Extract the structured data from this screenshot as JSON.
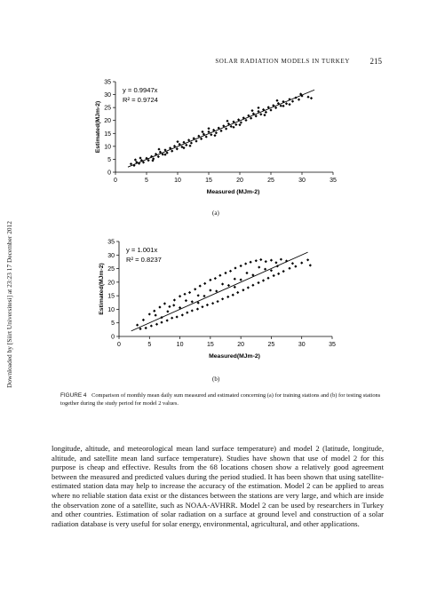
{
  "header": {
    "running_title": "SOLAR RADIATION MODELS IN TURKEY",
    "page_number": "215"
  },
  "side_note": "Downloaded by [Siirt Universitesi] at 23:23 17 December 2012",
  "figure": {
    "caption_label": "FIGURE 4",
    "caption_text": "Comparison of monthly mean daily sum measured and estimated concerning (a) for training stations and (b) for testing stations together during the study period for model 2 values.",
    "panel_a_label": "(a)",
    "panel_b_label": "(b)"
  },
  "chart_data": [
    {
      "type": "scatter",
      "panel": "(a)",
      "xlabel": "Measured (MJm-2)",
      "ylabel": "Estimated(MJm-2)",
      "xlim": [
        0,
        35
      ],
      "ylim": [
        0,
        35
      ],
      "xticks": [
        "0",
        "5",
        "10",
        "15",
        "20",
        "25",
        "30",
        "35"
      ],
      "yticks": [
        "0",
        "5",
        "10",
        "15",
        "20",
        "25",
        "30",
        "35"
      ],
      "equation": "y = 0.9947x",
      "r2": "R² = 0.9724",
      "trendline_slope": 0.9947,
      "trendline_x": [
        2,
        32
      ],
      "points": [
        [
          2.5,
          3.2
        ],
        [
          3.0,
          2.6
        ],
        [
          3.4,
          3.9
        ],
        [
          3.8,
          3.4
        ],
        [
          4.2,
          4.6
        ],
        [
          4.5,
          3.8
        ],
        [
          5.0,
          5.4
        ],
        [
          5.3,
          4.6
        ],
        [
          5.8,
          6.1
        ],
        [
          6.1,
          5.2
        ],
        [
          6.5,
          7.0
        ],
        [
          6.9,
          6.0
        ],
        [
          7.2,
          7.8
        ],
        [
          7.6,
          6.9
        ],
        [
          8.0,
          8.6
        ],
        [
          8.3,
          7.5
        ],
        [
          8.8,
          9.3
        ],
        [
          9.1,
          8.2
        ],
        [
          9.5,
          10.1
        ],
        [
          9.9,
          9.0
        ],
        [
          10.3,
          10.8
        ],
        [
          10.7,
          9.8
        ],
        [
          11.0,
          11.6
        ],
        [
          11.4,
          10.5
        ],
        [
          11.8,
          12.4
        ],
        [
          12.2,
          11.3
        ],
        [
          12.6,
          13.1
        ],
        [
          13.0,
          12.0
        ],
        [
          13.4,
          14.0
        ],
        [
          13.8,
          12.9
        ],
        [
          14.2,
          14.7
        ],
        [
          14.6,
          13.7
        ],
        [
          15.0,
          15.6
        ],
        [
          15.4,
          14.5
        ],
        [
          15.8,
          16.3
        ],
        [
          16.2,
          15.2
        ],
        [
          16.6,
          17.1
        ],
        [
          17.0,
          16.0
        ],
        [
          17.4,
          17.9
        ],
        [
          17.8,
          16.8
        ],
        [
          18.2,
          18.7
        ],
        [
          18.6,
          17.7
        ],
        [
          19.0,
          19.5
        ],
        [
          19.4,
          18.4
        ],
        [
          19.8,
          20.3
        ],
        [
          20.2,
          19.2
        ],
        [
          20.6,
          21.0
        ],
        [
          21.0,
          20.1
        ],
        [
          21.4,
          21.9
        ],
        [
          21.8,
          20.9
        ],
        [
          22.2,
          22.6
        ],
        [
          22.6,
          21.7
        ],
        [
          23.0,
          23.5
        ],
        [
          23.4,
          22.4
        ],
        [
          23.8,
          24.2
        ],
        [
          24.2,
          23.2
        ],
        [
          24.6,
          25.1
        ],
        [
          25.0,
          24.0
        ],
        [
          25.4,
          25.8
        ],
        [
          25.8,
          24.9
        ],
        [
          26.2,
          26.6
        ],
        [
          26.6,
          25.7
        ],
        [
          27.0,
          27.3
        ],
        [
          27.5,
          26.5
        ],
        [
          28.0,
          28.2
        ],
        [
          28.5,
          27.4
        ],
        [
          29.0,
          28.8
        ],
        [
          29.5,
          28.1
        ],
        [
          30.0,
          29.5
        ],
        [
          31.0,
          29.1
        ],
        [
          4.0,
          5.5
        ],
        [
          6.0,
          4.5
        ],
        [
          8.0,
          6.8
        ],
        [
          10.0,
          11.8
        ],
        [
          12.0,
          10.2
        ],
        [
          14.0,
          15.6
        ],
        [
          16.0,
          14.2
        ],
        [
          18.0,
          19.8
        ],
        [
          20.0,
          18.3
        ],
        [
          22.0,
          23.8
        ],
        [
          24.0,
          22.1
        ],
        [
          26.0,
          27.7
        ],
        [
          28.0,
          26.2
        ],
        [
          3.2,
          4.8
        ],
        [
          7.0,
          8.9
        ],
        [
          11.0,
          9.4
        ],
        [
          15.0,
          16.9
        ],
        [
          19.0,
          17.4
        ],
        [
          23.0,
          24.9
        ],
        [
          27.0,
          25.6
        ],
        [
          29.8,
          30.2
        ],
        [
          31.5,
          28.6
        ]
      ]
    },
    {
      "type": "scatter",
      "panel": "(b)",
      "xlabel": "Measured(MJm-2)",
      "ylabel": "Estimated(MJm-2)",
      "xlim": [
        0,
        35
      ],
      "ylim": [
        0,
        35
      ],
      "xticks": [
        "0",
        "5",
        "10",
        "15",
        "20",
        "25",
        "30",
        "35"
      ],
      "yticks": [
        "0",
        "5",
        "10",
        "15",
        "20",
        "25",
        "30",
        "35"
      ],
      "equation": "y = 1.001x",
      "r2": "R² = 0.8237",
      "trendline_slope": 1.001,
      "trendline_x": [
        2,
        31
      ],
      "points": [
        [
          3.0,
          4.2
        ],
        [
          3.5,
          2.8
        ],
        [
          4.0,
          6.1
        ],
        [
          4.4,
          3.1
        ],
        [
          5.0,
          8.2
        ],
        [
          5.3,
          3.9
        ],
        [
          5.8,
          9.4
        ],
        [
          6.2,
          4.5
        ],
        [
          6.7,
          10.8
        ],
        [
          7.0,
          5.2
        ],
        [
          7.5,
          12.1
        ],
        [
          7.9,
          5.9
        ],
        [
          8.3,
          11.0
        ],
        [
          8.7,
          6.8
        ],
        [
          9.1,
          13.4
        ],
        [
          9.5,
          7.2
        ],
        [
          10.0,
          14.8
        ],
        [
          10.4,
          7.9
        ],
        [
          10.8,
          15.6
        ],
        [
          11.2,
          8.8
        ],
        [
          11.6,
          16.2
        ],
        [
          12.0,
          9.5
        ],
        [
          12.5,
          17.4
        ],
        [
          12.9,
          10.1
        ],
        [
          13.3,
          18.6
        ],
        [
          13.7,
          10.9
        ],
        [
          14.1,
          19.5
        ],
        [
          14.5,
          11.6
        ],
        [
          15.0,
          20.8
        ],
        [
          15.4,
          12.2
        ],
        [
          15.8,
          21.4
        ],
        [
          16.2,
          12.9
        ],
        [
          16.6,
          22.5
        ],
        [
          17.0,
          13.8
        ],
        [
          17.5,
          23.4
        ],
        [
          17.9,
          14.6
        ],
        [
          18.3,
          24.1
        ],
        [
          18.7,
          15.3
        ],
        [
          19.1,
          25.2
        ],
        [
          19.5,
          16.2
        ],
        [
          20.0,
          26.0
        ],
        [
          20.4,
          17.1
        ],
        [
          20.8,
          26.8
        ],
        [
          21.2,
          18.0
        ],
        [
          21.6,
          27.4
        ],
        [
          22.0,
          18.9
        ],
        [
          22.5,
          27.9
        ],
        [
          22.9,
          19.8
        ],
        [
          23.3,
          28.3
        ],
        [
          23.7,
          20.6
        ],
        [
          24.1,
          27.6
        ],
        [
          24.5,
          21.5
        ],
        [
          25.0,
          28.1
        ],
        [
          25.4,
          22.4
        ],
        [
          25.8,
          27.2
        ],
        [
          26.2,
          23.1
        ],
        [
          26.6,
          28.4
        ],
        [
          27.0,
          24.0
        ],
        [
          27.5,
          27.8
        ],
        [
          28.0,
          25.1
        ],
        [
          28.5,
          26.9
        ],
        [
          29.0,
          25.8
        ],
        [
          30.0,
          27.1
        ],
        [
          31.0,
          28.2
        ],
        [
          31.4,
          26.2
        ],
        [
          6.0,
          7.8
        ],
        [
          8.0,
          9.2
        ],
        [
          10.0,
          10.6
        ],
        [
          12.0,
          12.8
        ],
        [
          14.0,
          14.9
        ],
        [
          16.0,
          16.7
        ],
        [
          18.0,
          18.8
        ],
        [
          20.0,
          20.9
        ],
        [
          22.0,
          22.6
        ],
        [
          24.0,
          24.8
        ],
        [
          26.0,
          25.9
        ],
        [
          9.0,
          11.5
        ],
        [
          11.0,
          13.2
        ],
        [
          13.0,
          15.1
        ],
        [
          15.0,
          17.0
        ],
        [
          17.0,
          19.3
        ],
        [
          19.0,
          21.2
        ],
        [
          21.0,
          23.4
        ],
        [
          23.0,
          25.5
        ],
        [
          7.0,
          7.0
        ],
        [
          13.0,
          12.4
        ],
        [
          19.0,
          18.2
        ],
        [
          25.0,
          24.3
        ]
      ]
    }
  ],
  "body_text": "longitude, altitude, and meteorological mean land surface temperature) and model 2 (latitude, longitude, altitude, and satellite mean land surface temperature). Studies have shown that use of model 2 for this purpose is cheap and effective. Results from the 68 locations chosen show a relatively good agreement between the measured and predicted values during the period studied. It has been shown that using satellite-estimated station data may help to increase the accuracy of the estimation. Model 2 can be applied to areas where no reliable station data exist or the distances between the stations are very large, and which are inside the observation zone of a satellite, such as NOAA-AVHRR. Model 2 can be used by researchers in Turkey and other countries. Estimation of solar radiation on a surface at ground level and construction of a solar radiation database is very useful for solar energy, environmental, agricultural, and other applications."
}
